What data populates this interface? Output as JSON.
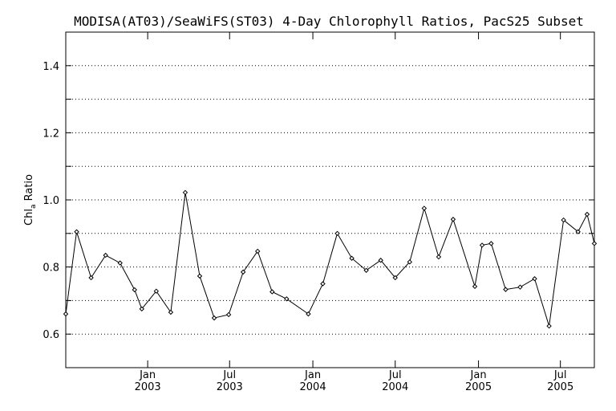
{
  "chart_data": {
    "type": "line",
    "title": "MODISA(AT03)/SeaWiFS(ST03) 4-Day Chlorophyll Ratios, PacS25 Subset",
    "ylabel": "Chl",
    "ylabel_sub": "a",
    "ylabel_suffix": " Ratio",
    "xlabel": "",
    "ylim": [
      0.5,
      1.5
    ],
    "y_ticks": [
      {
        "value": 0.6,
        "label": "0.6"
      },
      {
        "value": 0.8,
        "label": "0.8"
      },
      {
        "value": 1.0,
        "label": "1.0"
      },
      {
        "value": 1.2,
        "label": "1.2"
      },
      {
        "value": 1.4,
        "label": "1.4"
      }
    ],
    "y_grid": [
      0.6,
      0.7,
      0.8,
      0.9,
      1.0,
      1.1,
      1.2,
      1.3,
      1.4
    ],
    "xlim": [
      "2002-07-04",
      "2005-09-14"
    ],
    "x_ticks": [
      {
        "date": "2003-01-01",
        "month": "Jan",
        "year": "2003"
      },
      {
        "date": "2003-07-01",
        "month": "Jul",
        "year": "2003"
      },
      {
        "date": "2004-01-01",
        "month": "Jan",
        "year": "2004"
      },
      {
        "date": "2004-07-01",
        "month": "Jul",
        "year": "2004"
      },
      {
        "date": "2005-01-01",
        "month": "Jan",
        "year": "2005"
      },
      {
        "date": "2005-07-01",
        "month": "Jul",
        "year": "2005"
      }
    ],
    "grid": true,
    "series": [
      {
        "points": [
          {
            "x": "2002-07-04",
            "y": 0.66
          },
          {
            "x": "2002-07-28",
            "y": 0.905
          },
          {
            "x": "2002-08-29",
            "y": 0.768
          },
          {
            "x": "2002-09-30",
            "y": 0.835
          },
          {
            "x": "2002-11-01",
            "y": 0.812
          },
          {
            "x": "2002-12-03",
            "y": 0.732
          },
          {
            "x": "2002-12-19",
            "y": 0.675
          },
          {
            "x": "2003-01-20",
            "y": 0.728
          },
          {
            "x": "2003-02-21",
            "y": 0.665
          },
          {
            "x": "2003-03-25",
            "y": 1.022
          },
          {
            "x": "2003-04-26",
            "y": 0.773
          },
          {
            "x": "2003-05-28",
            "y": 0.648
          },
          {
            "x": "2003-06-29",
            "y": 0.658
          },
          {
            "x": "2003-07-31",
            "y": 0.785
          },
          {
            "x": "2003-09-01",
            "y": 0.847
          },
          {
            "x": "2003-10-03",
            "y": 0.726
          },
          {
            "x": "2003-11-04",
            "y": 0.705
          },
          {
            "x": "2003-12-22",
            "y": 0.66
          },
          {
            "x": "2004-01-23",
            "y": 0.75
          },
          {
            "x": "2004-02-24",
            "y": 0.9
          },
          {
            "x": "2004-03-27",
            "y": 0.826
          },
          {
            "x": "2004-04-28",
            "y": 0.79
          },
          {
            "x": "2004-05-30",
            "y": 0.82
          },
          {
            "x": "2004-07-01",
            "y": 0.768
          },
          {
            "x": "2004-08-02",
            "y": 0.815
          },
          {
            "x": "2004-09-03",
            "y": 0.975
          },
          {
            "x": "2004-10-05",
            "y": 0.83
          },
          {
            "x": "2004-11-06",
            "y": 0.942
          },
          {
            "x": "2004-12-24",
            "y": 0.742
          },
          {
            "x": "2005-01-09",
            "y": 0.865
          },
          {
            "x": "2005-01-29",
            "y": 0.87
          },
          {
            "x": "2005-03-02",
            "y": 0.733
          },
          {
            "x": "2005-04-03",
            "y": 0.74
          },
          {
            "x": "2005-05-05",
            "y": 0.765
          },
          {
            "x": "2005-06-06",
            "y": 0.624
          },
          {
            "x": "2005-07-08",
            "y": 0.94
          },
          {
            "x": "2005-08-09",
            "y": 0.905
          },
          {
            "x": "2005-08-29",
            "y": 0.957
          },
          {
            "x": "2005-09-14",
            "y": 0.87
          }
        ]
      }
    ]
  }
}
